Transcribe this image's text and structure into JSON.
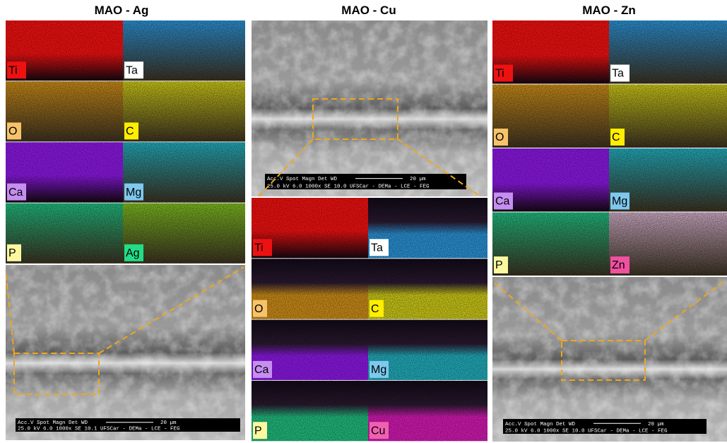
{
  "panels": [
    {
      "title": "MAO - Ag",
      "maps": [
        {
          "label": "Ti"
        },
        {
          "label": "Ta"
        },
        {
          "label": "O"
        },
        {
          "label": "C"
        },
        {
          "label": "Ca"
        },
        {
          "label": "Mg"
        },
        {
          "label": "P"
        },
        {
          "label": "Ag"
        }
      ],
      "sem_info": {
        "line1": "Acc.V  Spot Magn    Det  WD",
        "scale": "20 µm",
        "line2": "25.0 kV 6.0  1000x   SE  10.1  UFSCar - DEMa - LCE - FEG"
      }
    },
    {
      "title": "MAO - Cu",
      "maps": [
        {
          "label": "Ti"
        },
        {
          "label": "Ta"
        },
        {
          "label": "O"
        },
        {
          "label": "C"
        },
        {
          "label": "Ca"
        },
        {
          "label": "Mg"
        },
        {
          "label": "P"
        },
        {
          "label": "Cu"
        }
      ],
      "sem_info": {
        "line1": "Acc.V  Spot Magn    Det  WD",
        "scale": "20 µm",
        "line2": "25.0 kV 6.0  1000x   SE  10.0  UFSCar - DEMa - LCE - FEG"
      }
    },
    {
      "title": "MAO - Zn",
      "maps": [
        {
          "label": "Ti"
        },
        {
          "label": "Ta"
        },
        {
          "label": "O"
        },
        {
          "label": "C"
        },
        {
          "label": "Ca"
        },
        {
          "label": "Mg"
        },
        {
          "label": "P"
        },
        {
          "label": "Zn"
        }
      ],
      "sem_info": {
        "line1": "Acc.V  Spot Magn    Det  WD",
        "scale": "20 µm",
        "line2": "25.0 kV 6.0  1000x   SE  10.0  UFSCar - DEMa - LCE - FEG"
      }
    }
  ]
}
